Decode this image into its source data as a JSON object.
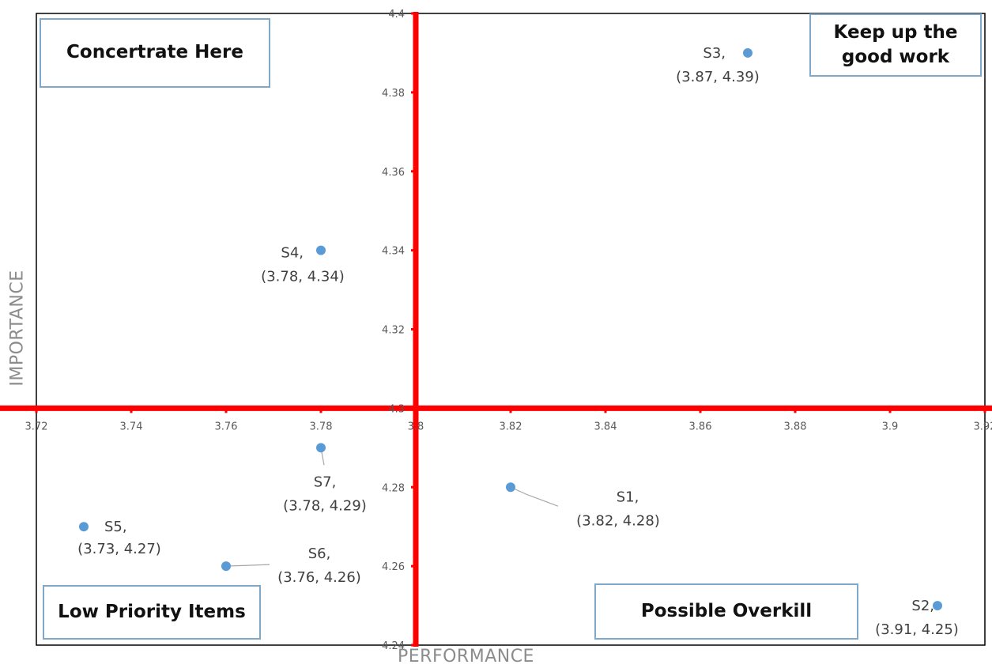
{
  "chart_data": {
    "type": "scatter",
    "title": "",
    "xlabel": "PERFORMANCE",
    "ylabel": "IMPORTANCE",
    "xlim": [
      3.72,
      3.92
    ],
    "ylim": [
      4.24,
      4.4
    ],
    "x_ticks": [
      "3.72",
      "3.74",
      "3.76",
      "3.78",
      "3.8",
      "3.82",
      "3.84",
      "3.86",
      "3.88",
      "3.9",
      "3.92"
    ],
    "y_ticks": [
      "4.24",
      "4.26",
      "4.28",
      "4.3",
      "4.32",
      "4.34",
      "4.36",
      "4.38",
      "4.4"
    ],
    "axis_cross": {
      "x": 3.8,
      "y": 4.3
    },
    "axis_color": "#FF0000",
    "point_color": "#5B9BD5",
    "points": [
      {
        "name": "S1,",
        "coords": "(3.82, 4.28)",
        "x": 3.82,
        "y": 4.28
      },
      {
        "name": "S2,",
        "coords": "(3.91, 4.25)",
        "x": 3.91,
        "y": 4.25
      },
      {
        "name": "S3,",
        "coords": "(3.87, 4.39)",
        "x": 3.87,
        "y": 4.39
      },
      {
        "name": "S4,",
        "coords": "(3.78, 4.34)",
        "x": 3.78,
        "y": 4.34
      },
      {
        "name": "S5,",
        "coords": "(3.73, 4.27)",
        "x": 3.73,
        "y": 4.27
      },
      {
        "name": "S6,",
        "coords": "(3.76, 4.26)",
        "x": 3.76,
        "y": 4.26
      },
      {
        "name": "S7,",
        "coords": "(3.78, 4.29)",
        "x": 3.78,
        "y": 4.29
      }
    ],
    "quadrant_labels": {
      "top_left": "Concertrate Here",
      "top_right": "Keep up the good work",
      "bottom_left": "Low Priority Items",
      "bottom_right": "Possible Overkill"
    }
  }
}
